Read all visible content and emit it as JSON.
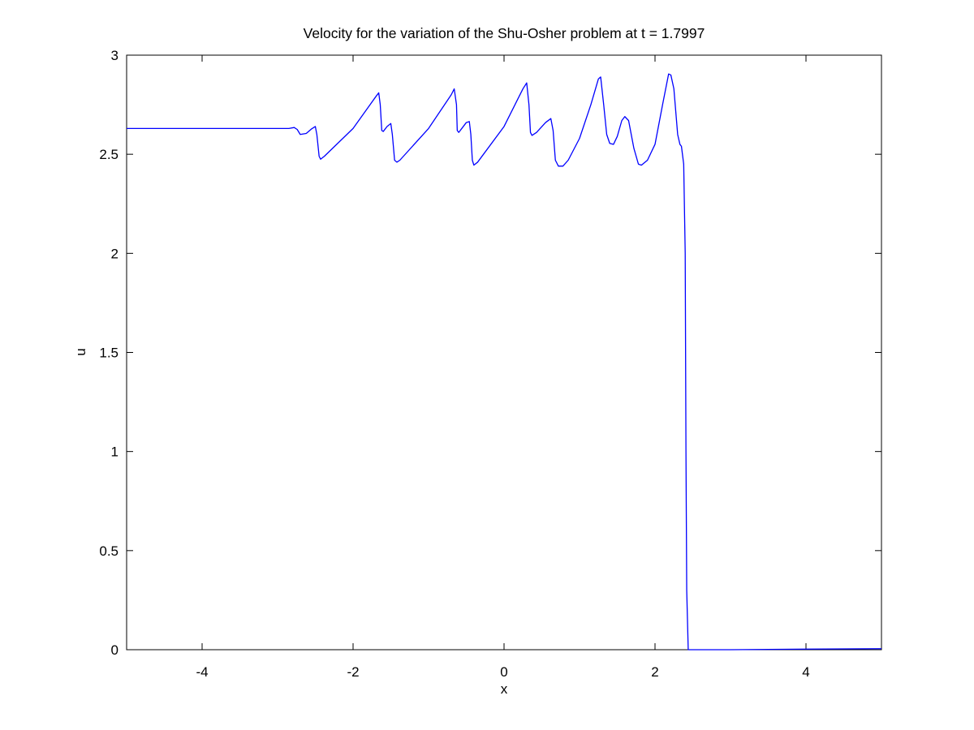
{
  "chart_data": {
    "type": "line",
    "title": "Velocity for the variation of the Shu-Osher problem at t = 1.7997",
    "xlabel": "x",
    "ylabel": "u",
    "xlim": [
      -5,
      5
    ],
    "ylim": [
      0,
      3
    ],
    "x_ticks": [
      -4,
      -2,
      0,
      2,
      4
    ],
    "x_tick_labels": [
      "-4",
      "-2",
      "0",
      "2",
      "4"
    ],
    "y_ticks": [
      0,
      0.5,
      1,
      1.5,
      2,
      2.5,
      3
    ],
    "y_tick_labels": [
      "0",
      "0.5",
      "1",
      "1.5",
      "2",
      "2.5",
      "3"
    ],
    "grid": false,
    "legend": "none",
    "series": [
      {
        "color": "#0000ff",
        "points": [
          [
            -5.0,
            2.63
          ],
          [
            -2.85,
            2.63
          ],
          [
            -2.78,
            2.635
          ],
          [
            -2.74,
            2.625
          ],
          [
            -2.7,
            2.6
          ],
          [
            -2.62,
            2.605
          ],
          [
            -2.55,
            2.628
          ],
          [
            -2.5,
            2.64
          ],
          [
            -2.48,
            2.6
          ],
          [
            -2.45,
            2.49
          ],
          [
            -2.43,
            2.475
          ],
          [
            -2.38,
            2.49
          ],
          [
            -2.0,
            2.63
          ],
          [
            -1.7,
            2.79
          ],
          [
            -1.66,
            2.81
          ],
          [
            -1.64,
            2.75
          ],
          [
            -1.62,
            2.62
          ],
          [
            -1.6,
            2.615
          ],
          [
            -1.55,
            2.64
          ],
          [
            -1.5,
            2.655
          ],
          [
            -1.48,
            2.6
          ],
          [
            -1.45,
            2.47
          ],
          [
            -1.42,
            2.46
          ],
          [
            -1.38,
            2.47
          ],
          [
            -1.0,
            2.63
          ],
          [
            -0.7,
            2.8
          ],
          [
            -0.66,
            2.83
          ],
          [
            -0.63,
            2.75
          ],
          [
            -0.62,
            2.62
          ],
          [
            -0.6,
            2.61
          ],
          [
            -0.55,
            2.635
          ],
          [
            -0.5,
            2.66
          ],
          [
            -0.46,
            2.665
          ],
          [
            -0.44,
            2.6
          ],
          [
            -0.42,
            2.47
          ],
          [
            -0.4,
            2.445
          ],
          [
            -0.35,
            2.46
          ],
          [
            0.0,
            2.64
          ],
          [
            0.25,
            2.83
          ],
          [
            0.3,
            2.86
          ],
          [
            0.33,
            2.75
          ],
          [
            0.35,
            2.61
          ],
          [
            0.37,
            2.595
          ],
          [
            0.43,
            2.61
          ],
          [
            0.55,
            2.66
          ],
          [
            0.62,
            2.68
          ],
          [
            0.65,
            2.62
          ],
          [
            0.68,
            2.47
          ],
          [
            0.72,
            2.44
          ],
          [
            0.78,
            2.44
          ],
          [
            0.85,
            2.47
          ],
          [
            1.0,
            2.58
          ],
          [
            1.15,
            2.75
          ],
          [
            1.25,
            2.88
          ],
          [
            1.28,
            2.89
          ],
          [
            1.32,
            2.75
          ],
          [
            1.36,
            2.6
          ],
          [
            1.4,
            2.555
          ],
          [
            1.45,
            2.55
          ],
          [
            1.5,
            2.59
          ],
          [
            1.56,
            2.67
          ],
          [
            1.6,
            2.69
          ],
          [
            1.65,
            2.67
          ],
          [
            1.72,
            2.53
          ],
          [
            1.78,
            2.45
          ],
          [
            1.82,
            2.445
          ],
          [
            1.9,
            2.47
          ],
          [
            2.0,
            2.55
          ],
          [
            2.1,
            2.75
          ],
          [
            2.18,
            2.905
          ],
          [
            2.21,
            2.9
          ],
          [
            2.25,
            2.83
          ],
          [
            2.3,
            2.6
          ],
          [
            2.33,
            2.55
          ],
          [
            2.35,
            2.54
          ],
          [
            2.38,
            2.45
          ],
          [
            2.4,
            2.0
          ],
          [
            2.41,
            1.0
          ],
          [
            2.42,
            0.3
          ],
          [
            2.44,
            0.0
          ],
          [
            3.0,
            0.0
          ],
          [
            4.0,
            0.003
          ],
          [
            5.0,
            0.005
          ]
        ]
      }
    ]
  }
}
